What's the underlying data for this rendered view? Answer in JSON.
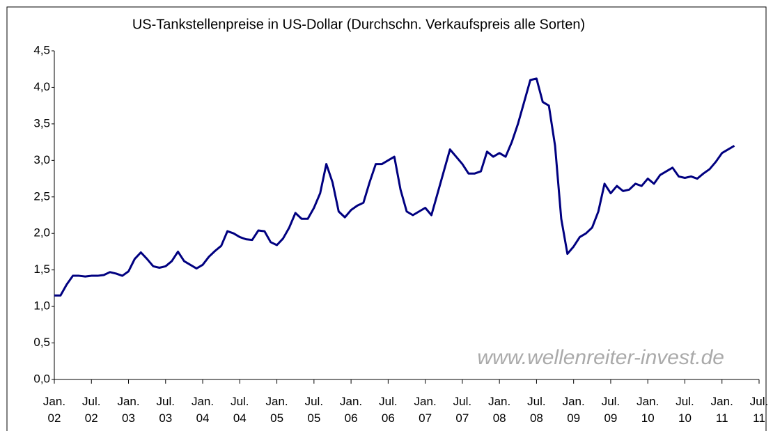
{
  "chart_data": {
    "type": "line",
    "title": "US-Tankstellenpreise in US-Dollar (Durchschn. Verkaufspreis alle Sorten)",
    "watermark": "www.wellenreiter-invest.de",
    "categories": [
      "Jan. 02",
      null,
      null,
      null,
      null,
      null,
      "Jul. 02",
      null,
      null,
      null,
      null,
      null,
      "Jan. 03",
      null,
      null,
      null,
      null,
      null,
      "Jul. 03",
      null,
      null,
      null,
      null,
      null,
      "Jan. 04",
      null,
      null,
      null,
      null,
      null,
      "Jul. 04",
      null,
      null,
      null,
      null,
      null,
      "Jan. 05",
      null,
      null,
      null,
      null,
      null,
      "Jul. 05",
      null,
      null,
      null,
      null,
      null,
      "Jan. 06",
      null,
      null,
      null,
      null,
      null,
      "Jul. 06",
      null,
      null,
      null,
      null,
      null,
      "Jan. 07",
      null,
      null,
      null,
      null,
      null,
      "Jul. 07",
      null,
      null,
      null,
      null,
      null,
      "Jan. 08",
      null,
      null,
      null,
      null,
      null,
      "Jul. 08",
      null,
      null,
      null,
      null,
      null,
      "Jan. 09",
      null,
      null,
      null,
      null,
      null,
      "Jul. 09",
      null,
      null,
      null,
      null,
      null,
      "Jan. 10",
      null,
      null,
      null,
      null,
      null,
      "Jul. 10",
      null,
      null,
      null,
      null,
      null,
      "Jan. 11",
      null,
      null,
      null,
      null,
      null,
      "Jul. 11"
    ],
    "series": [
      {
        "name": "US-Tankstellenpreise",
        "color": "#000080",
        "values": [
          1.15,
          1.15,
          1.3,
          1.42,
          1.42,
          1.41,
          1.42,
          1.42,
          1.43,
          1.47,
          1.45,
          1.42,
          1.48,
          1.65,
          1.74,
          1.65,
          1.55,
          1.53,
          1.55,
          1.62,
          1.75,
          1.62,
          1.57,
          1.52,
          1.57,
          1.68,
          1.76,
          1.83,
          2.03,
          2.0,
          1.95,
          1.92,
          1.91,
          2.04,
          2.03,
          1.88,
          1.84,
          1.93,
          2.08,
          2.28,
          2.2,
          2.2,
          2.35,
          2.55,
          2.95,
          2.7,
          2.3,
          2.22,
          2.32,
          2.38,
          2.42,
          2.7,
          2.95,
          2.95,
          3.0,
          3.05,
          2.6,
          2.3,
          2.25,
          2.3,
          2.35,
          2.25,
          2.55,
          2.85,
          3.15,
          3.05,
          2.95,
          2.82,
          2.82,
          2.85,
          3.12,
          3.05,
          3.1,
          3.05,
          3.25,
          3.5,
          3.8,
          4.1,
          4.12,
          3.8,
          3.75,
          3.2,
          2.2,
          1.72,
          1.82,
          1.95,
          2.0,
          2.08,
          2.3,
          2.68,
          2.55,
          2.65,
          2.58,
          2.6,
          2.68,
          2.65,
          2.75,
          2.68,
          2.8,
          2.85,
          2.9,
          2.78,
          2.76,
          2.78,
          2.75,
          2.82,
          2.88,
          2.98,
          3.1,
          3.15,
          3.2,
          null,
          null,
          null,
          null
        ]
      }
    ],
    "ylim": [
      0,
      4.5
    ],
    "yticks": [
      {
        "value": 0,
        "label": "0,0"
      },
      {
        "value": 0.5,
        "label": "0,5"
      },
      {
        "value": 1,
        "label": "1,0"
      },
      {
        "value": 1.5,
        "label": "1,5"
      },
      {
        "value": 2,
        "label": "2,0"
      },
      {
        "value": 2.5,
        "label": "2,5"
      },
      {
        "value": 3,
        "label": "3,0"
      },
      {
        "value": 3.5,
        "label": "3,5"
      },
      {
        "value": 4,
        "label": "4,0"
      },
      {
        "value": 4.5,
        "label": "4,5"
      }
    ],
    "grid": false
  }
}
